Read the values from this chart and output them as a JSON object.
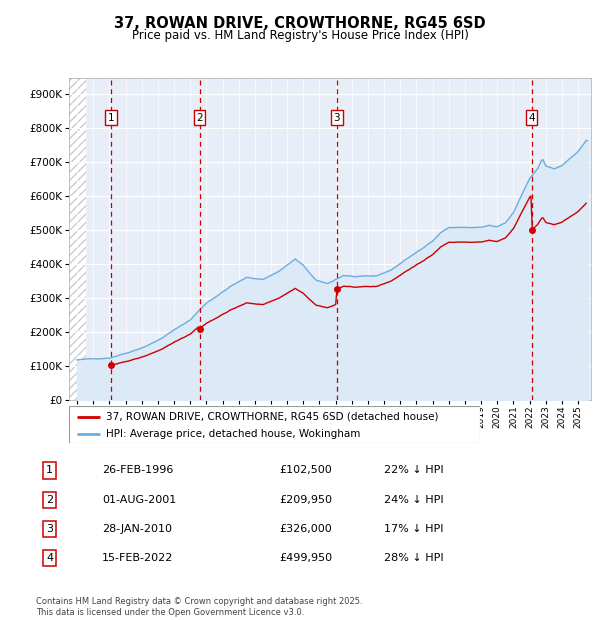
{
  "title": "37, ROWAN DRIVE, CROWTHORNE, RG45 6SD",
  "subtitle": "Price paid vs. HM Land Registry's House Price Index (HPI)",
  "footer": "Contains HM Land Registry data © Crown copyright and database right 2025.\nThis data is licensed under the Open Government Licence v3.0.",
  "legend_line1": "37, ROWAN DRIVE, CROWTHORNE, RG45 6SD (detached house)",
  "legend_line2": "HPI: Average price, detached house, Wokingham",
  "sales": [
    {
      "num": 1,
      "date_year": 1996.12,
      "price": 102500,
      "label": "26-FEB-1996",
      "pct": "22%",
      "dir": "↓"
    },
    {
      "num": 2,
      "date_year": 2001.58,
      "price": 209950,
      "label": "01-AUG-2001",
      "pct": "24%",
      "dir": "↓"
    },
    {
      "num": 3,
      "date_year": 2010.07,
      "price": 326000,
      "label": "28-JAN-2010",
      "pct": "17%",
      "dir": "↓"
    },
    {
      "num": 4,
      "date_year": 2022.12,
      "price": 499950,
      "label": "15-FEB-2022",
      "pct": "28%",
      "dir": "↓"
    }
  ],
  "hpi_color": "#6aaee0",
  "sale_color": "#cc0000",
  "hpi_fill": "#dce9f7",
  "bg_color": "#ffffff",
  "plot_bg": "#e8eef8",
  "grid_color": "#ffffff",
  "ylim": [
    0,
    950000
  ],
  "yticks": [
    0,
    100000,
    200000,
    300000,
    400000,
    500000,
    600000,
    700000,
    800000,
    900000
  ],
  "xlim_start": 1993.5,
  "xlim_end": 2025.8,
  "hatch_end": 1994.58
}
